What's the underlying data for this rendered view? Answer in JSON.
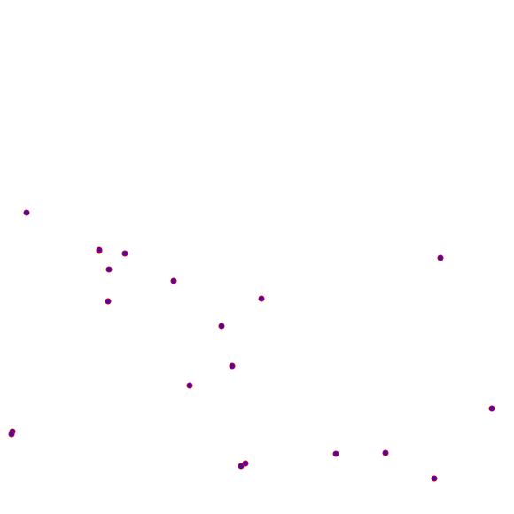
{
  "scene": {
    "background_color": "#ffffff"
  },
  "marker_style": {
    "fill_color": "#4b0aa0",
    "edge_color": "#ff0000"
  },
  "markers": [
    {
      "id": "marker-1"
    },
    {
      "id": "marker-2"
    },
    {
      "id": "marker-3"
    },
    {
      "id": "marker-4"
    },
    {
      "id": "marker-5"
    },
    {
      "id": "marker-6"
    },
    {
      "id": "marker-7"
    },
    {
      "id": "marker-8"
    },
    {
      "id": "marker-9"
    },
    {
      "id": "marker-10"
    },
    {
      "id": "marker-11"
    },
    {
      "id": "marker-12"
    },
    {
      "id": "marker-13"
    },
    {
      "id": "marker-14"
    },
    {
      "id": "marker-15"
    },
    {
      "id": "marker-16"
    },
    {
      "id": "marker-17"
    },
    {
      "id": "marker-18"
    },
    {
      "id": "marker-19"
    },
    {
      "id": "marker-20"
    }
  ]
}
